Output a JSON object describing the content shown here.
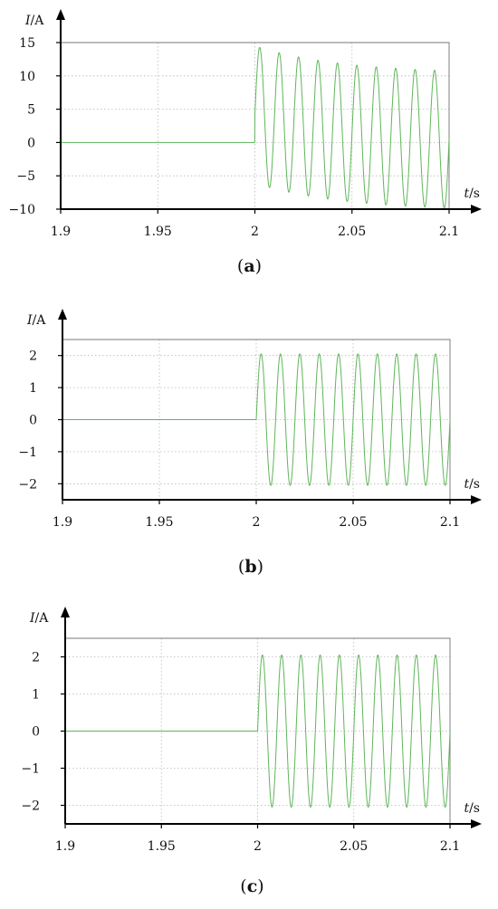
{
  "figure": {
    "panels": [
      "(a)",
      "(b)",
      "(c)"
    ]
  },
  "colors": {
    "signal": "#5fb65a",
    "axis": "#000000",
    "grid": "#b8b8b8",
    "frame": "#777777"
  },
  "chart_data": [
    {
      "type": "line",
      "panel_label": "(a)",
      "ylabel": "I/A",
      "xlabel": "t/s",
      "xlim": [
        1.9,
        2.1
      ],
      "ylim": [
        -10,
        15
      ],
      "xticks": [
        1.9,
        1.95,
        2,
        2.05,
        2.1
      ],
      "yticks": [
        15,
        10,
        5,
        0,
        -5,
        -10
      ],
      "xtick_labels": [
        "1.9",
        "1.95",
        "2",
        "2.05",
        "2.1"
      ],
      "ytick_labels": [
        "15",
        "10",
        "5",
        "0",
        "−5",
        "−10"
      ],
      "grid": true,
      "waveform": {
        "pre_step_value": 0,
        "step_time": 2.0,
        "frequency_hz": 100,
        "steady_amplitude": 10.3,
        "dc_offset_initial": 4.2,
        "dc_offset_final": 0,
        "dc_decay_tau_s": 0.045,
        "first_peak": 14.5,
        "last_trough": -9.7
      }
    },
    {
      "type": "line",
      "panel_label": "(b)",
      "ylabel": "I/A",
      "xlabel": "t/s",
      "xlim": [
        1.9,
        2.1
      ],
      "ylim": [
        -2.5,
        2.5
      ],
      "xticks": [
        1.9,
        1.95,
        2,
        2.05,
        2.1
      ],
      "yticks": [
        2,
        1,
        0,
        -1,
        -2
      ],
      "xtick_labels": [
        "1.9",
        "1.95",
        "2",
        "2.05",
        "2.1"
      ],
      "ytick_labels": [
        "2",
        "1",
        "0",
        "−1",
        "−2"
      ],
      "grid": true,
      "waveform": {
        "pre_step_value": 0,
        "step_time": 2.0,
        "frequency_hz": 100,
        "steady_amplitude": 2.05,
        "dc_offset_initial": 0,
        "dc_offset_final": 0,
        "dc_decay_tau_s": 0.01
      }
    },
    {
      "type": "line",
      "panel_label": "(c)",
      "ylabel": "I/A",
      "xlabel": "t/s",
      "xlim": [
        1.9,
        2.1
      ],
      "ylim": [
        -2.5,
        2.5
      ],
      "xticks": [
        1.9,
        1.95,
        2,
        2.05,
        2.1
      ],
      "yticks": [
        2,
        1,
        0,
        -1,
        -2
      ],
      "xtick_labels": [
        "1.9",
        "1.95",
        "2",
        "2.05",
        "2.1"
      ],
      "ytick_labels": [
        "2",
        "1",
        "0",
        "−1",
        "−2"
      ],
      "grid": true,
      "waveform": {
        "pre_step_value": 0,
        "step_time": 2.0,
        "frequency_hz": 100,
        "steady_amplitude": 2.05,
        "dc_offset_initial": 0,
        "dc_offset_final": 0,
        "dc_decay_tau_s": 0.01
      }
    }
  ]
}
